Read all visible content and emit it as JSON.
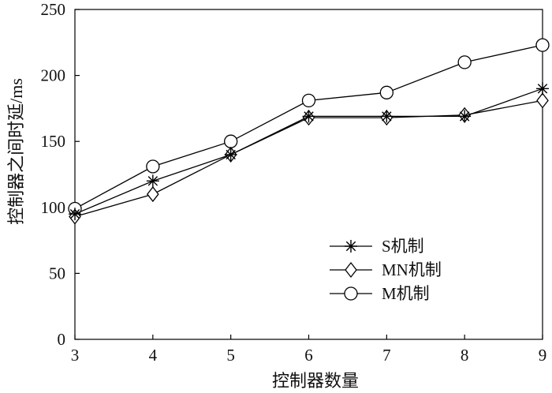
{
  "chart_data": {
    "type": "line",
    "title": "",
    "xlabel": "控制器数量",
    "ylabel": "控制器之间时延/ms",
    "x": [
      3,
      4,
      5,
      6,
      7,
      8,
      9
    ],
    "xlim": [
      3,
      9
    ],
    "ylim": [
      0,
      250
    ],
    "yticks": [
      0,
      50,
      100,
      150,
      200,
      250
    ],
    "grid": false,
    "legend_position": "lower-right",
    "series": [
      {
        "name": "S机制",
        "marker": "asterisk",
        "values": [
          95,
          120,
          140,
          169,
          169,
          169,
          190
        ]
      },
      {
        "name": "MN机制",
        "marker": "diamond",
        "values": [
          93,
          110,
          140,
          168,
          168,
          170,
          181
        ]
      },
      {
        "name": "M机制",
        "marker": "circle",
        "values": [
          99,
          131,
          150,
          181,
          187,
          210,
          223
        ]
      }
    ],
    "colors": {
      "line": "#000000",
      "axis": "#000000",
      "background": "#ffffff"
    }
  }
}
